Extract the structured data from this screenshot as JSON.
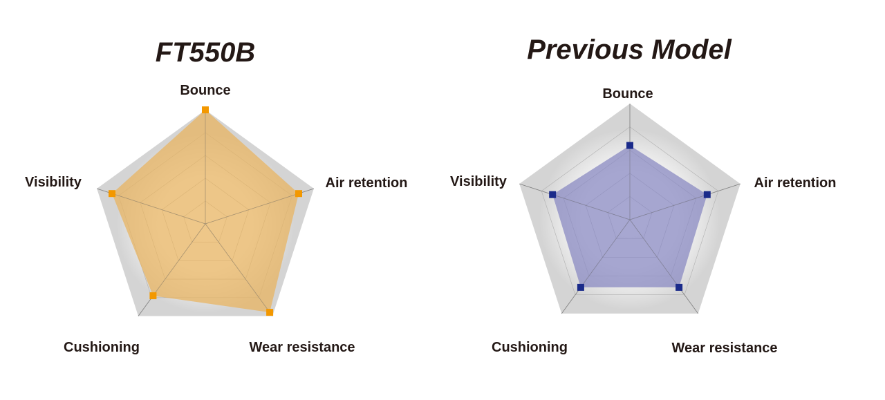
{
  "chart_data": [
    {
      "type": "radar",
      "title": "FT550B",
      "axes": [
        "Bounce",
        "Air retention",
        "Wear resistance",
        "Cushioning",
        "Visibility"
      ],
      "values": [
        5,
        4.3,
        4.8,
        3.9,
        4.3
      ],
      "rmax": 5,
      "levels": 5,
      "fill_color": "#e8b462",
      "fill_opacity": 0.75,
      "marker_color": "#f39800",
      "outer_color": "#d4d4d4"
    },
    {
      "type": "radar",
      "title": "Previous Model",
      "axes": [
        "Bounce",
        "Air retention",
        "Wear resistance",
        "Cushioning",
        "Visibility"
      ],
      "values": [
        3.2,
        3.5,
        3.6,
        3.6,
        3.5
      ],
      "rmax": 5,
      "levels": 5,
      "fill_color": "#8a8ac2",
      "fill_opacity": 0.75,
      "marker_color": "#1a2a8a",
      "outer_color": "#d4d4d4"
    }
  ]
}
